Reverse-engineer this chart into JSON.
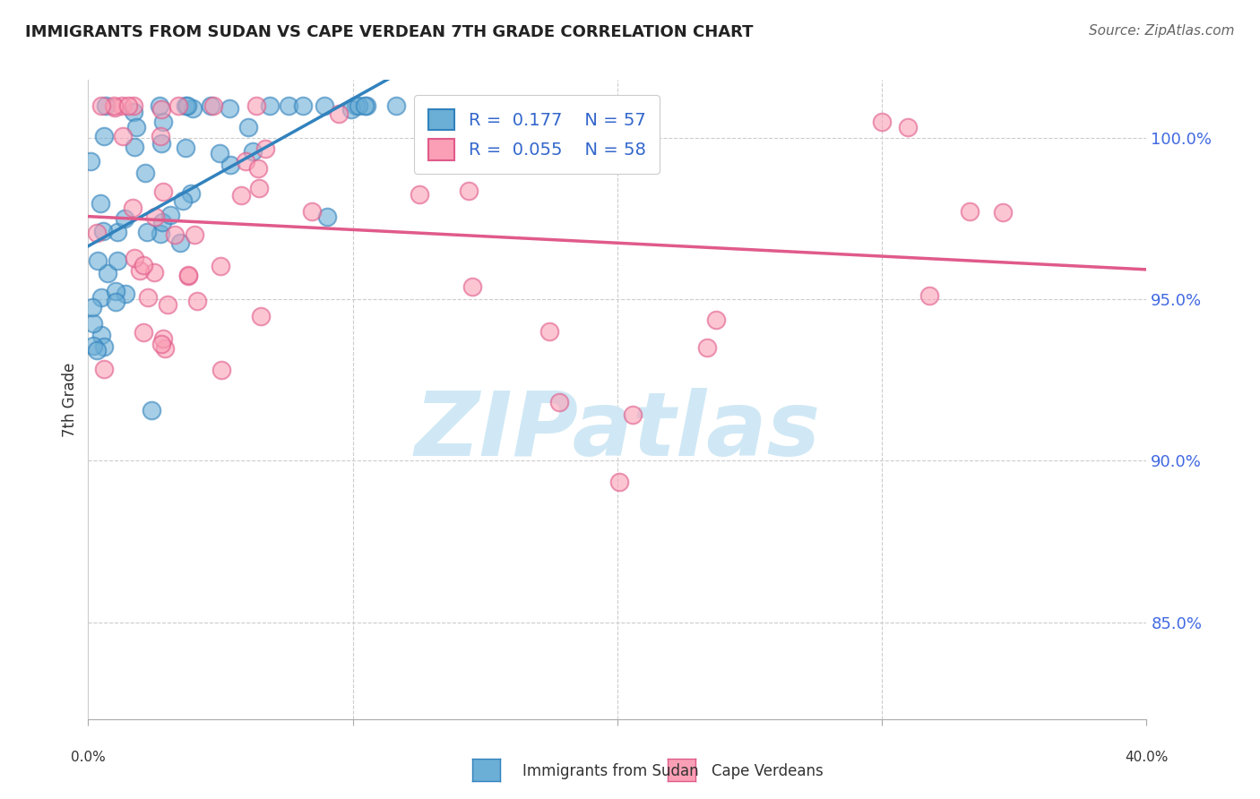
{
  "title": "IMMIGRANTS FROM SUDAN VS CAPE VERDEAN 7TH GRADE CORRELATION CHART",
  "source": "Source: ZipAtlas.com",
  "ylabel": "7th Grade",
  "y_ticks": [
    85.0,
    90.0,
    95.0,
    100.0
  ],
  "y_tick_labels": [
    "85.0%",
    "90.0%",
    "95.0%",
    "100.0%"
  ],
  "x_min": 0.0,
  "x_max": 0.4,
  "y_min": 82.0,
  "y_max": 101.8,
  "watermark": "ZIPatlas",
  "color_blue": "#6baed6",
  "color_pink": "#fa9fb5",
  "line_color_blue": "#3182bd",
  "line_color_pink": "#e05a8a",
  "watermark_color": "#d0e8f5",
  "background_color": "#ffffff",
  "legend_label1": "R =  0.177    N = 57",
  "legend_label2": "R =  0.055    N = 58",
  "bottom_label1": "Immigrants from Sudan",
  "bottom_label2": "Cape Verdeans"
}
